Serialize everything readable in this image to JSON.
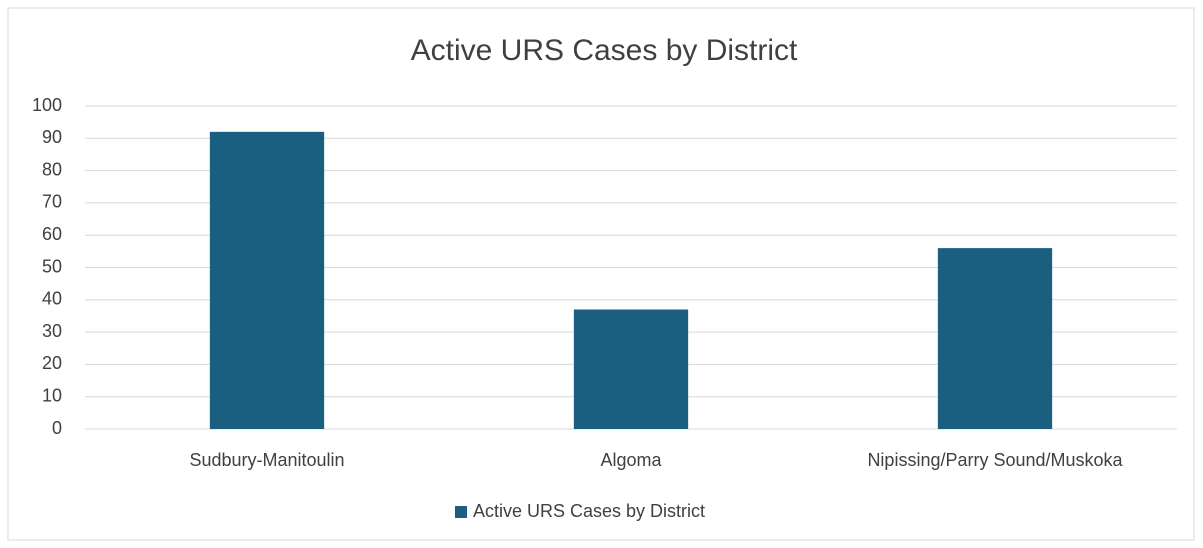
{
  "chart_data": {
    "type": "bar",
    "title": "Active URS Cases by District",
    "categories": [
      "Sudbury-Manitoulin",
      "Algoma",
      "Nipissing/Parry Sound/Muskoka"
    ],
    "series": [
      {
        "name": "Active URS Cases by District",
        "color": "#1a5f80",
        "values": [
          92,
          37,
          56
        ]
      }
    ],
    "ylim": [
      0,
      100
    ],
    "yticks": [
      0,
      10,
      20,
      30,
      40,
      50,
      60,
      70,
      80,
      90,
      100
    ],
    "grid": true,
    "legend": "bottom"
  }
}
